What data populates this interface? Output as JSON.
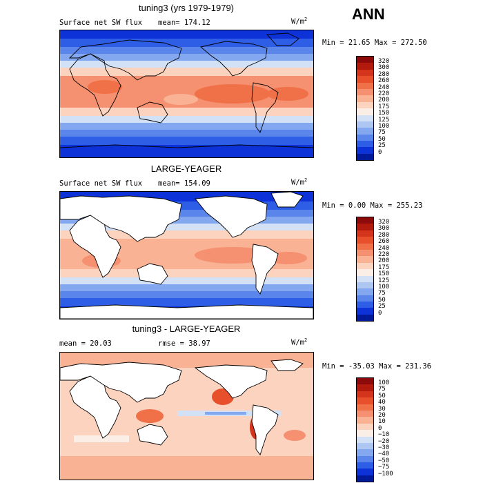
{
  "season": "ANN",
  "panels": [
    {
      "title": "tuning3 (yrs 1979-1979)",
      "field": "Surface net SW flux",
      "stat": "mean= 174.12",
      "units": "W/m",
      "units_exp": "2",
      "minmax": "Min =  21.65 Max = 272.50",
      "ticks": [
        "320",
        "300",
        "280",
        "260",
        "240",
        "220",
        "200",
        "175",
        "150",
        "125",
        "100",
        "75",
        "50",
        "25",
        "0"
      ]
    },
    {
      "title": "LARGE-YEAGER",
      "field": "Surface net SW flux",
      "stat": "mean= 154.09",
      "units": "W/m",
      "units_exp": "2",
      "minmax": "Min =   0.00 Max = 255.23",
      "ticks": [
        "320",
        "300",
        "280",
        "260",
        "240",
        "220",
        "200",
        "175",
        "150",
        "125",
        "100",
        "75",
        "50",
        "25",
        "0"
      ]
    },
    {
      "title": "tuning3 - LARGE-YEAGER",
      "mean": "mean =  20.03",
      "rmse": "rmse =  38.97",
      "units": "W/m",
      "units_exp": "2",
      "minmax": "Min = -35.03 Max = 231.36",
      "ticks": [
        "100",
        "75",
        "50",
        "40",
        "30",
        "20",
        "10",
        "0",
        "−10",
        "−20",
        "−30",
        "−40",
        "−50",
        "−75",
        "−100"
      ]
    }
  ],
  "colors": {
    "flux_scale": [
      "#8c0a0a",
      "#b31a0e",
      "#d4341c",
      "#e8502c",
      "#f07048",
      "#f59070",
      "#f9b294",
      "#fcd3bf",
      "#fbeee6",
      "#d2e1f6",
      "#adc7f2",
      "#84a8ef",
      "#5a85ea",
      "#2f5ee6",
      "#0d33d8",
      "#001a99"
    ],
    "diff_scale": [
      "#8c0a0a",
      "#b31a0e",
      "#d4341c",
      "#e8502c",
      "#f07048",
      "#f59070",
      "#f9b294",
      "#fcd3bf",
      "#fbeee6",
      "#d2e1f6",
      "#adc7f2",
      "#84a8ef",
      "#5a85ea",
      "#2f5ee6",
      "#0d33d8",
      "#001a99"
    ],
    "land_masked": "#ffffff"
  }
}
